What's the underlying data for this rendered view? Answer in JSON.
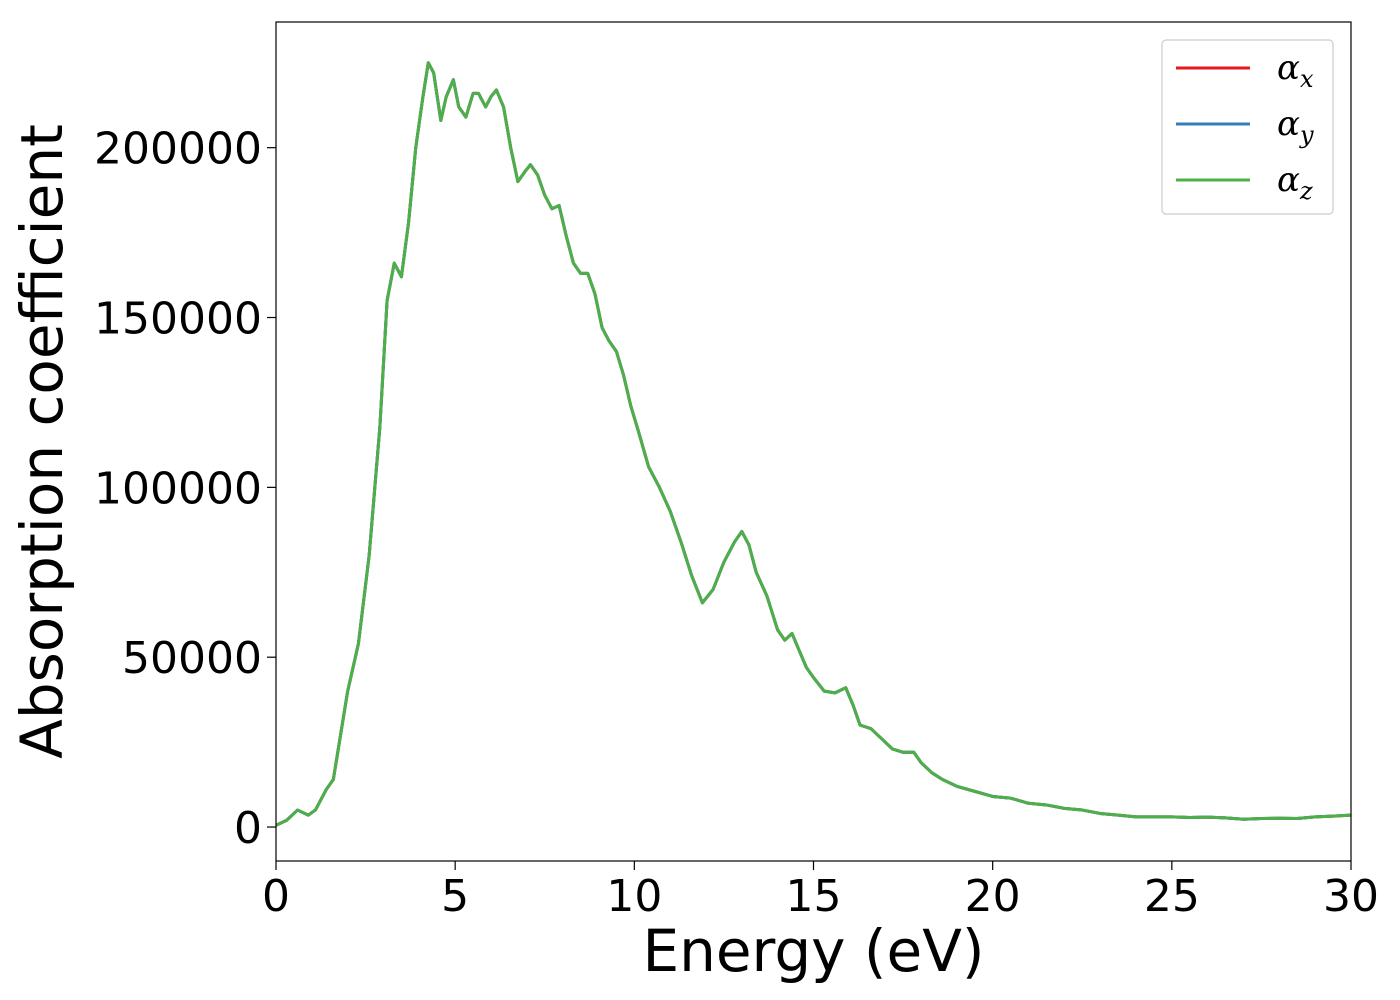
{
  "chart_data": {
    "type": "line",
    "title": "",
    "xlabel": "Energy (eV)",
    "ylabel": "Absorption coefficient",
    "xlim": [
      0,
      30
    ],
    "ylim": [
      -10000,
      237000
    ],
    "xticks": [
      0,
      5,
      10,
      15,
      20,
      25,
      30
    ],
    "yticks": [
      0,
      50000,
      100000,
      150000,
      200000
    ],
    "grid": false,
    "legend": {
      "position": "top-right"
    },
    "x": [
      0,
      0.3,
      0.6,
      0.9,
      1.1,
      1.4,
      1.6,
      2.0,
      2.3,
      2.6,
      2.9,
      3.1,
      3.3,
      3.5,
      3.7,
      3.9,
      4.1,
      4.25,
      4.4,
      4.6,
      4.75,
      4.95,
      5.1,
      5.3,
      5.5,
      5.65,
      5.85,
      6.0,
      6.15,
      6.35,
      6.55,
      6.75,
      6.95,
      7.1,
      7.3,
      7.5,
      7.7,
      7.9,
      8.1,
      8.3,
      8.5,
      8.7,
      8.9,
      9.1,
      9.3,
      9.5,
      9.7,
      9.9,
      10.1,
      10.4,
      10.7,
      11.0,
      11.3,
      11.6,
      11.9,
      12.2,
      12.5,
      12.8,
      13.0,
      13.2,
      13.4,
      13.7,
      14.0,
      14.2,
      14.4,
      14.6,
      14.8,
      15.0,
      15.3,
      15.6,
      15.9,
      16.1,
      16.3,
      16.6,
      16.9,
      17.2,
      17.5,
      17.8,
      18.0,
      18.3,
      18.6,
      19.0,
      19.5,
      20.0,
      20.5,
      21.0,
      21.5,
      22.0,
      22.5,
      23.0,
      23.5,
      24.0,
      24.5,
      25.0,
      25.5,
      26.0,
      26.5,
      27.0,
      27.5,
      28.0,
      28.5,
      29.0,
      29.5,
      30.0
    ],
    "series": [
      {
        "name": "αx",
        "color": "#e41a1c",
        "values": [
          500,
          2000,
          5000,
          3500,
          5000,
          11000,
          14000,
          40000,
          54000,
          80000,
          118000,
          155000,
          166000,
          162000,
          178000,
          200000,
          215000,
          225000,
          222000,
          208000,
          215000,
          220000,
          212000,
          209000,
          216000,
          216000,
          212000,
          215000,
          217000,
          212000,
          200000,
          190000,
          193000,
          195000,
          192000,
          186000,
          182000,
          183000,
          174000,
          166000,
          163000,
          163000,
          157000,
          147000,
          143000,
          140000,
          133000,
          124000,
          117000,
          106000,
          100000,
          93000,
          84000,
          74000,
          66000,
          70000,
          78000,
          84000,
          87000,
          83000,
          75000,
          68000,
          58000,
          55000,
          57000,
          52000,
          47000,
          44000,
          40000,
          39500,
          41000,
          36000,
          30000,
          29000,
          26000,
          23000,
          22000,
          22000,
          19000,
          16000,
          14000,
          12000,
          10500,
          9000,
          8500,
          7000,
          6500,
          5500,
          5000,
          4000,
          3500,
          3000,
          3000,
          3000,
          2800,
          2900,
          2700,
          2300,
          2500,
          2600,
          2500,
          3000,
          3200,
          3500
        ]
      },
      {
        "name": "αy",
        "color": "#377eb8",
        "values": [
          500,
          2000,
          5000,
          3500,
          5000,
          11000,
          14000,
          40000,
          54000,
          80000,
          118000,
          155000,
          166000,
          162000,
          178000,
          200000,
          215000,
          225000,
          222000,
          208000,
          215000,
          220000,
          212000,
          209000,
          216000,
          216000,
          212000,
          215000,
          217000,
          212000,
          200000,
          190000,
          193000,
          195000,
          192000,
          186000,
          182000,
          183000,
          174000,
          166000,
          163000,
          163000,
          157000,
          147000,
          143000,
          140000,
          133000,
          124000,
          117000,
          106000,
          100000,
          93000,
          84000,
          74000,
          66000,
          70000,
          78000,
          84000,
          87000,
          83000,
          75000,
          68000,
          58000,
          55000,
          57000,
          52000,
          47000,
          44000,
          40000,
          39500,
          41000,
          36000,
          30000,
          29000,
          26000,
          23000,
          22000,
          22000,
          19000,
          16000,
          14000,
          12000,
          10500,
          9000,
          8500,
          7000,
          6500,
          5500,
          5000,
          4000,
          3500,
          3000,
          3000,
          3000,
          2800,
          2900,
          2700,
          2300,
          2500,
          2600,
          2500,
          3000,
          3200,
          3500
        ]
      },
      {
        "name": "αz",
        "color": "#4daf4a",
        "values": [
          500,
          2000,
          5000,
          3500,
          5000,
          11000,
          14000,
          40000,
          54000,
          80000,
          118000,
          155000,
          166000,
          162000,
          178000,
          200000,
          215000,
          225000,
          222000,
          208000,
          215000,
          220000,
          212000,
          209000,
          216000,
          216000,
          212000,
          215000,
          217000,
          212000,
          200000,
          190000,
          193000,
          195000,
          192000,
          186000,
          182000,
          183000,
          174000,
          166000,
          163000,
          163000,
          157000,
          147000,
          143000,
          140000,
          133000,
          124000,
          117000,
          106000,
          100000,
          93000,
          84000,
          74000,
          66000,
          70000,
          78000,
          84000,
          87000,
          83000,
          75000,
          68000,
          58000,
          55000,
          57000,
          52000,
          47000,
          44000,
          40000,
          39500,
          41000,
          36000,
          30000,
          29000,
          26000,
          23000,
          22000,
          22000,
          19000,
          16000,
          14000,
          12000,
          10500,
          9000,
          8500,
          7000,
          6500,
          5500,
          5000,
          4000,
          3500,
          3000,
          3000,
          3000,
          2800,
          2900,
          2700,
          2300,
          2500,
          2600,
          2500,
          3000,
          3200,
          3500
        ]
      }
    ]
  }
}
